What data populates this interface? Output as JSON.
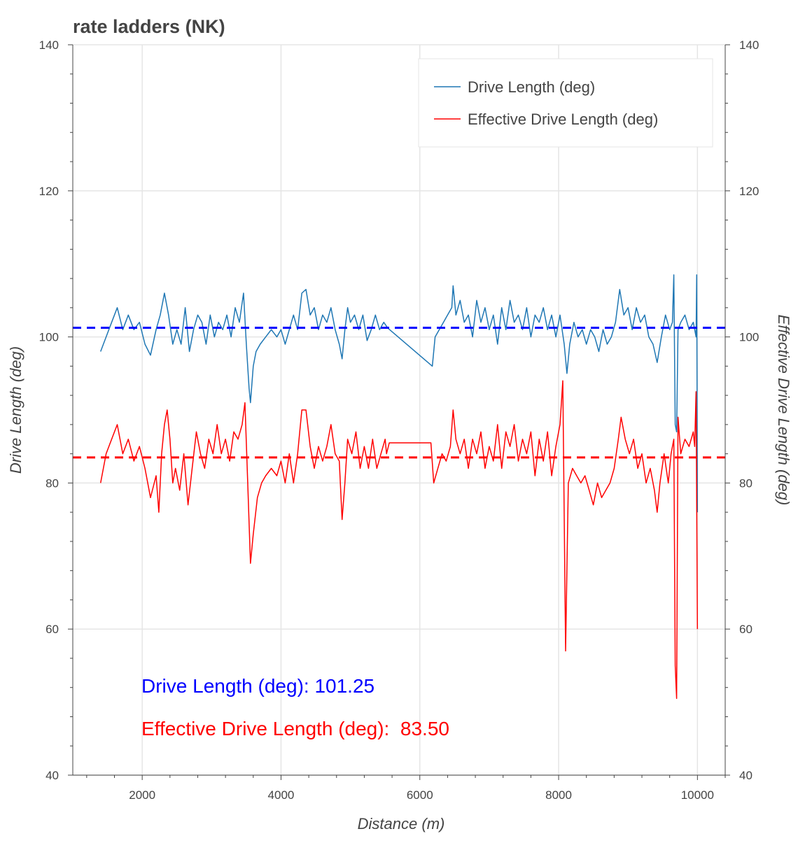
{
  "chart_data": {
    "type": "line",
    "title": "rate ladders (NK)",
    "xlabel": "Distance (m)",
    "ylabel": "Drive Length (deg)",
    "ylabel_right": "Effective Drive Length (deg)",
    "xlim": [
      1000,
      10400
    ],
    "ylim": [
      40,
      140
    ],
    "ylim_right": [
      40,
      140
    ],
    "x_ticks": [
      2000,
      4000,
      6000,
      8000,
      10000
    ],
    "y_ticks": [
      40,
      60,
      80,
      100,
      120,
      140
    ],
    "grid": true,
    "legend_position": "top-right",
    "series": [
      {
        "name": "Drive Length (deg)",
        "color": "#1f77b4",
        "mean": 101.25,
        "mean_color": "#0000ff",
        "points": [
          [
            1400,
            98
          ],
          [
            1480,
            100
          ],
          [
            1560,
            102
          ],
          [
            1640,
            104
          ],
          [
            1720,
            101
          ],
          [
            1800,
            103
          ],
          [
            1880,
            101
          ],
          [
            1960,
            102
          ],
          [
            2040,
            99
          ],
          [
            2120,
            97.5
          ],
          [
            2200,
            101
          ],
          [
            2260,
            103
          ],
          [
            2320,
            106
          ],
          [
            2380,
            103
          ],
          [
            2440,
            99
          ],
          [
            2500,
            101
          ],
          [
            2560,
            99
          ],
          [
            2620,
            104
          ],
          [
            2680,
            98
          ],
          [
            2740,
            101
          ],
          [
            2800,
            103
          ],
          [
            2860,
            102
          ],
          [
            2920,
            99
          ],
          [
            2980,
            103
          ],
          [
            3040,
            100
          ],
          [
            3100,
            102
          ],
          [
            3160,
            101
          ],
          [
            3220,
            103
          ],
          [
            3280,
            100
          ],
          [
            3340,
            104
          ],
          [
            3400,
            102
          ],
          [
            3460,
            106
          ],
          [
            3500,
            99
          ],
          [
            3540,
            93
          ],
          [
            3560,
            91
          ],
          [
            3600,
            96
          ],
          [
            3640,
            98
          ],
          [
            3700,
            99
          ],
          [
            3780,
            100
          ],
          [
            3860,
            101
          ],
          [
            3940,
            100
          ],
          [
            4000,
            101
          ],
          [
            4060,
            99
          ],
          [
            4120,
            101
          ],
          [
            4180,
            103
          ],
          [
            4240,
            101
          ],
          [
            4300,
            106
          ],
          [
            4360,
            106.5
          ],
          [
            4420,
            103
          ],
          [
            4480,
            104
          ],
          [
            4540,
            101
          ],
          [
            4600,
            103
          ],
          [
            4660,
            102
          ],
          [
            4720,
            104
          ],
          [
            4780,
            101
          ],
          [
            4840,
            99
          ],
          [
            4880,
            97
          ],
          [
            4920,
            101
          ],
          [
            4960,
            104
          ],
          [
            5000,
            102
          ],
          [
            5060,
            103
          ],
          [
            5120,
            101
          ],
          [
            5180,
            103
          ],
          [
            5240,
            99.5
          ],
          [
            5300,
            101
          ],
          [
            5360,
            103
          ],
          [
            5420,
            101
          ],
          [
            5480,
            102
          ],
          [
            5540,
            101.2
          ],
          [
            6180,
            96
          ],
          [
            6220,
            100
          ],
          [
            6280,
            101
          ],
          [
            6340,
            102
          ],
          [
            6400,
            103
          ],
          [
            6460,
            104
          ],
          [
            6480,
            107
          ],
          [
            6520,
            103
          ],
          [
            6580,
            105
          ],
          [
            6640,
            102
          ],
          [
            6700,
            103
          ],
          [
            6760,
            100
          ],
          [
            6820,
            105
          ],
          [
            6880,
            102
          ],
          [
            6940,
            104
          ],
          [
            7000,
            101
          ],
          [
            7060,
            103
          ],
          [
            7120,
            99
          ],
          [
            7180,
            104
          ],
          [
            7240,
            101
          ],
          [
            7300,
            105
          ],
          [
            7360,
            102
          ],
          [
            7420,
            103
          ],
          [
            7480,
            101
          ],
          [
            7540,
            104
          ],
          [
            7600,
            100
          ],
          [
            7660,
            103
          ],
          [
            7720,
            102
          ],
          [
            7780,
            104
          ],
          [
            7840,
            101
          ],
          [
            7900,
            103
          ],
          [
            7960,
            100
          ],
          [
            8020,
            103
          ],
          [
            8080,
            99
          ],
          [
            8120,
            95
          ],
          [
            8160,
            99
          ],
          [
            8220,
            102
          ],
          [
            8280,
            100
          ],
          [
            8340,
            101
          ],
          [
            8400,
            99
          ],
          [
            8460,
            101
          ],
          [
            8520,
            100
          ],
          [
            8580,
            98
          ],
          [
            8640,
            101
          ],
          [
            8700,
            99
          ],
          [
            8760,
            100
          ],
          [
            8820,
            102
          ],
          [
            8880,
            106.5
          ],
          [
            8940,
            103
          ],
          [
            9000,
            104
          ],
          [
            9060,
            101
          ],
          [
            9120,
            104
          ],
          [
            9180,
            102
          ],
          [
            9240,
            103
          ],
          [
            9300,
            100
          ],
          [
            9360,
            99
          ],
          [
            9420,
            96.5
          ],
          [
            9480,
            100
          ],
          [
            9540,
            103
          ],
          [
            9600,
            101
          ],
          [
            9640,
            102
          ],
          [
            9660,
            108.5
          ],
          [
            9680,
            88
          ],
          [
            9700,
            87
          ],
          [
            9720,
            101
          ],
          [
            9760,
            102
          ],
          [
            9820,
            103
          ],
          [
            9880,
            101
          ],
          [
            9940,
            102
          ],
          [
            9980,
            100
          ],
          [
            9990,
            108.5
          ],
          [
            10000,
            76
          ]
        ]
      },
      {
        "name": "Effective Drive Length (deg)",
        "color": "#ff0000",
        "mean": 83.5,
        "mean_color": "#ff0000",
        "points": [
          [
            1400,
            80
          ],
          [
            1480,
            84
          ],
          [
            1560,
            86
          ],
          [
            1640,
            88
          ],
          [
            1720,
            84
          ],
          [
            1800,
            86
          ],
          [
            1880,
            83
          ],
          [
            1960,
            85
          ],
          [
            2040,
            82
          ],
          [
            2120,
            78
          ],
          [
            2200,
            81
          ],
          [
            2240,
            76
          ],
          [
            2280,
            84
          ],
          [
            2320,
            88
          ],
          [
            2360,
            90
          ],
          [
            2400,
            86
          ],
          [
            2440,
            80
          ],
          [
            2480,
            82
          ],
          [
            2540,
            79
          ],
          [
            2600,
            84
          ],
          [
            2660,
            77
          ],
          [
            2720,
            82
          ],
          [
            2780,
            87
          ],
          [
            2840,
            84
          ],
          [
            2900,
            82
          ],
          [
            2960,
            86
          ],
          [
            3020,
            84
          ],
          [
            3080,
            88
          ],
          [
            3140,
            84
          ],
          [
            3200,
            86
          ],
          [
            3260,
            83
          ],
          [
            3320,
            87
          ],
          [
            3380,
            86
          ],
          [
            3440,
            88
          ],
          [
            3480,
            91
          ],
          [
            3520,
            80
          ],
          [
            3560,
            69
          ],
          [
            3600,
            73
          ],
          [
            3660,
            78
          ],
          [
            3720,
            80
          ],
          [
            3780,
            81
          ],
          [
            3860,
            82
          ],
          [
            3940,
            81
          ],
          [
            4000,
            83
          ],
          [
            4060,
            80
          ],
          [
            4120,
            84
          ],
          [
            4180,
            80
          ],
          [
            4240,
            84
          ],
          [
            4300,
            90
          ],
          [
            4360,
            90
          ],
          [
            4420,
            85
          ],
          [
            4480,
            82
          ],
          [
            4540,
            85
          ],
          [
            4600,
            83
          ],
          [
            4660,
            85
          ],
          [
            4720,
            88
          ],
          [
            4780,
            84
          ],
          [
            4840,
            83
          ],
          [
            4880,
            75
          ],
          [
            4920,
            80
          ],
          [
            4960,
            86
          ],
          [
            5020,
            84
          ],
          [
            5080,
            87
          ],
          [
            5140,
            82
          ],
          [
            5200,
            85
          ],
          [
            5260,
            82
          ],
          [
            5320,
            86
          ],
          [
            5380,
            82
          ],
          [
            5440,
            84
          ],
          [
            5500,
            86
          ],
          [
            5520,
            84
          ],
          [
            5560,
            85.5
          ],
          [
            6160,
            85.5
          ],
          [
            6200,
            80
          ],
          [
            6260,
            82
          ],
          [
            6320,
            84
          ],
          [
            6380,
            83
          ],
          [
            6440,
            85
          ],
          [
            6480,
            90
          ],
          [
            6520,
            86
          ],
          [
            6580,
            84
          ],
          [
            6640,
            86
          ],
          [
            6700,
            82
          ],
          [
            6760,
            86
          ],
          [
            6820,
            84
          ],
          [
            6880,
            87
          ],
          [
            6940,
            82
          ],
          [
            7000,
            85
          ],
          [
            7060,
            83
          ],
          [
            7120,
            88
          ],
          [
            7180,
            82
          ],
          [
            7240,
            87
          ],
          [
            7300,
            85
          ],
          [
            7360,
            88
          ],
          [
            7420,
            83
          ],
          [
            7480,
            86
          ],
          [
            7540,
            84
          ],
          [
            7600,
            87
          ],
          [
            7660,
            81
          ],
          [
            7720,
            86
          ],
          [
            7780,
            83
          ],
          [
            7840,
            87
          ],
          [
            7900,
            81
          ],
          [
            7960,
            85
          ],
          [
            8020,
            88
          ],
          [
            8060,
            94
          ],
          [
            8100,
            57
          ],
          [
            8140,
            80
          ],
          [
            8200,
            82
          ],
          [
            8260,
            81
          ],
          [
            8320,
            80
          ],
          [
            8380,
            81
          ],
          [
            8440,
            79
          ],
          [
            8500,
            77
          ],
          [
            8560,
            80
          ],
          [
            8620,
            78
          ],
          [
            8680,
            79
          ],
          [
            8740,
            80
          ],
          [
            8800,
            82
          ],
          [
            8860,
            86
          ],
          [
            8900,
            89
          ],
          [
            8960,
            86
          ],
          [
            9020,
            84
          ],
          [
            9080,
            86
          ],
          [
            9140,
            82
          ],
          [
            9200,
            84
          ],
          [
            9260,
            80
          ],
          [
            9320,
            82
          ],
          [
            9380,
            79
          ],
          [
            9420,
            76
          ],
          [
            9460,
            80
          ],
          [
            9520,
            84
          ],
          [
            9580,
            80
          ],
          [
            9620,
            84
          ],
          [
            9660,
            86
          ],
          [
            9680,
            55
          ],
          [
            9700,
            50.5
          ],
          [
            9720,
            89
          ],
          [
            9760,
            84
          ],
          [
            9820,
            86
          ],
          [
            9880,
            85
          ],
          [
            9940,
            87
          ],
          [
            9960,
            85
          ],
          [
            9980,
            92.5
          ],
          [
            10000,
            60
          ]
        ]
      }
    ],
    "annotations": [
      {
        "text": "Drive Length (deg): 101.25",
        "color": "#0000ff"
      },
      {
        "text": "Effective Drive Length (deg):  83.50",
        "color": "#ff0000"
      }
    ]
  }
}
